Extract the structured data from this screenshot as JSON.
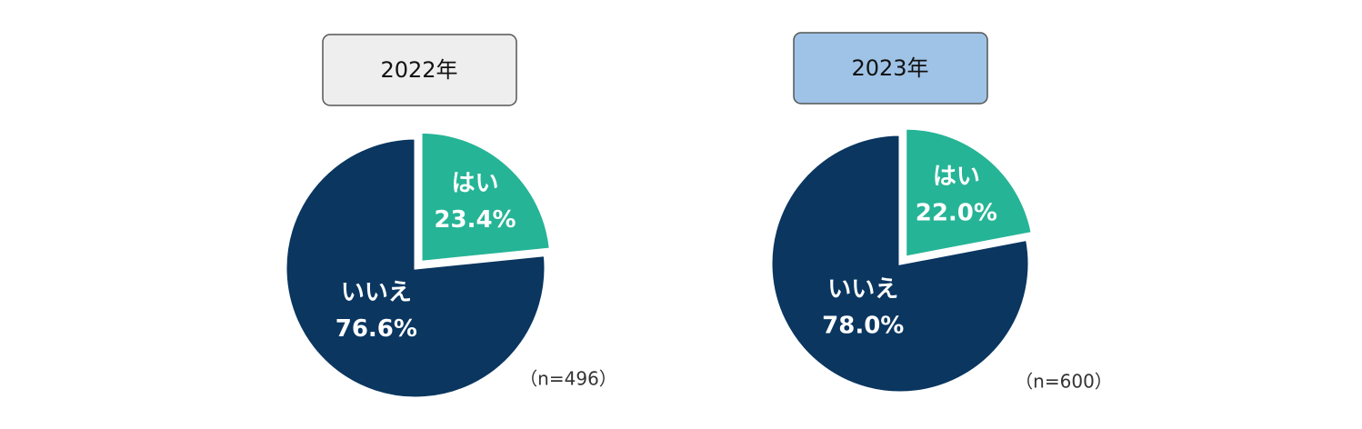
{
  "chart_data": [
    {
      "type": "pie",
      "title": "2022年",
      "categories": [
        "はい",
        "いいえ"
      ],
      "values": [
        23.4,
        76.6
      ],
      "value_labels": [
        "23.4%",
        "76.6%"
      ],
      "colors": [
        "#25b496",
        "#0a3660"
      ],
      "note": "（n=496）",
      "title_color": "#eeeeee"
    },
    {
      "type": "pie",
      "title": "2023年",
      "categories": [
        "はい",
        "いいえ"
      ],
      "values": [
        22.0,
        78.0
      ],
      "value_labels": [
        "22.0%",
        "78.0%"
      ],
      "colors": [
        "#25b496",
        "#0a3660"
      ],
      "note": "（n=600）",
      "title_color": "#9fc3e6"
    }
  ]
}
